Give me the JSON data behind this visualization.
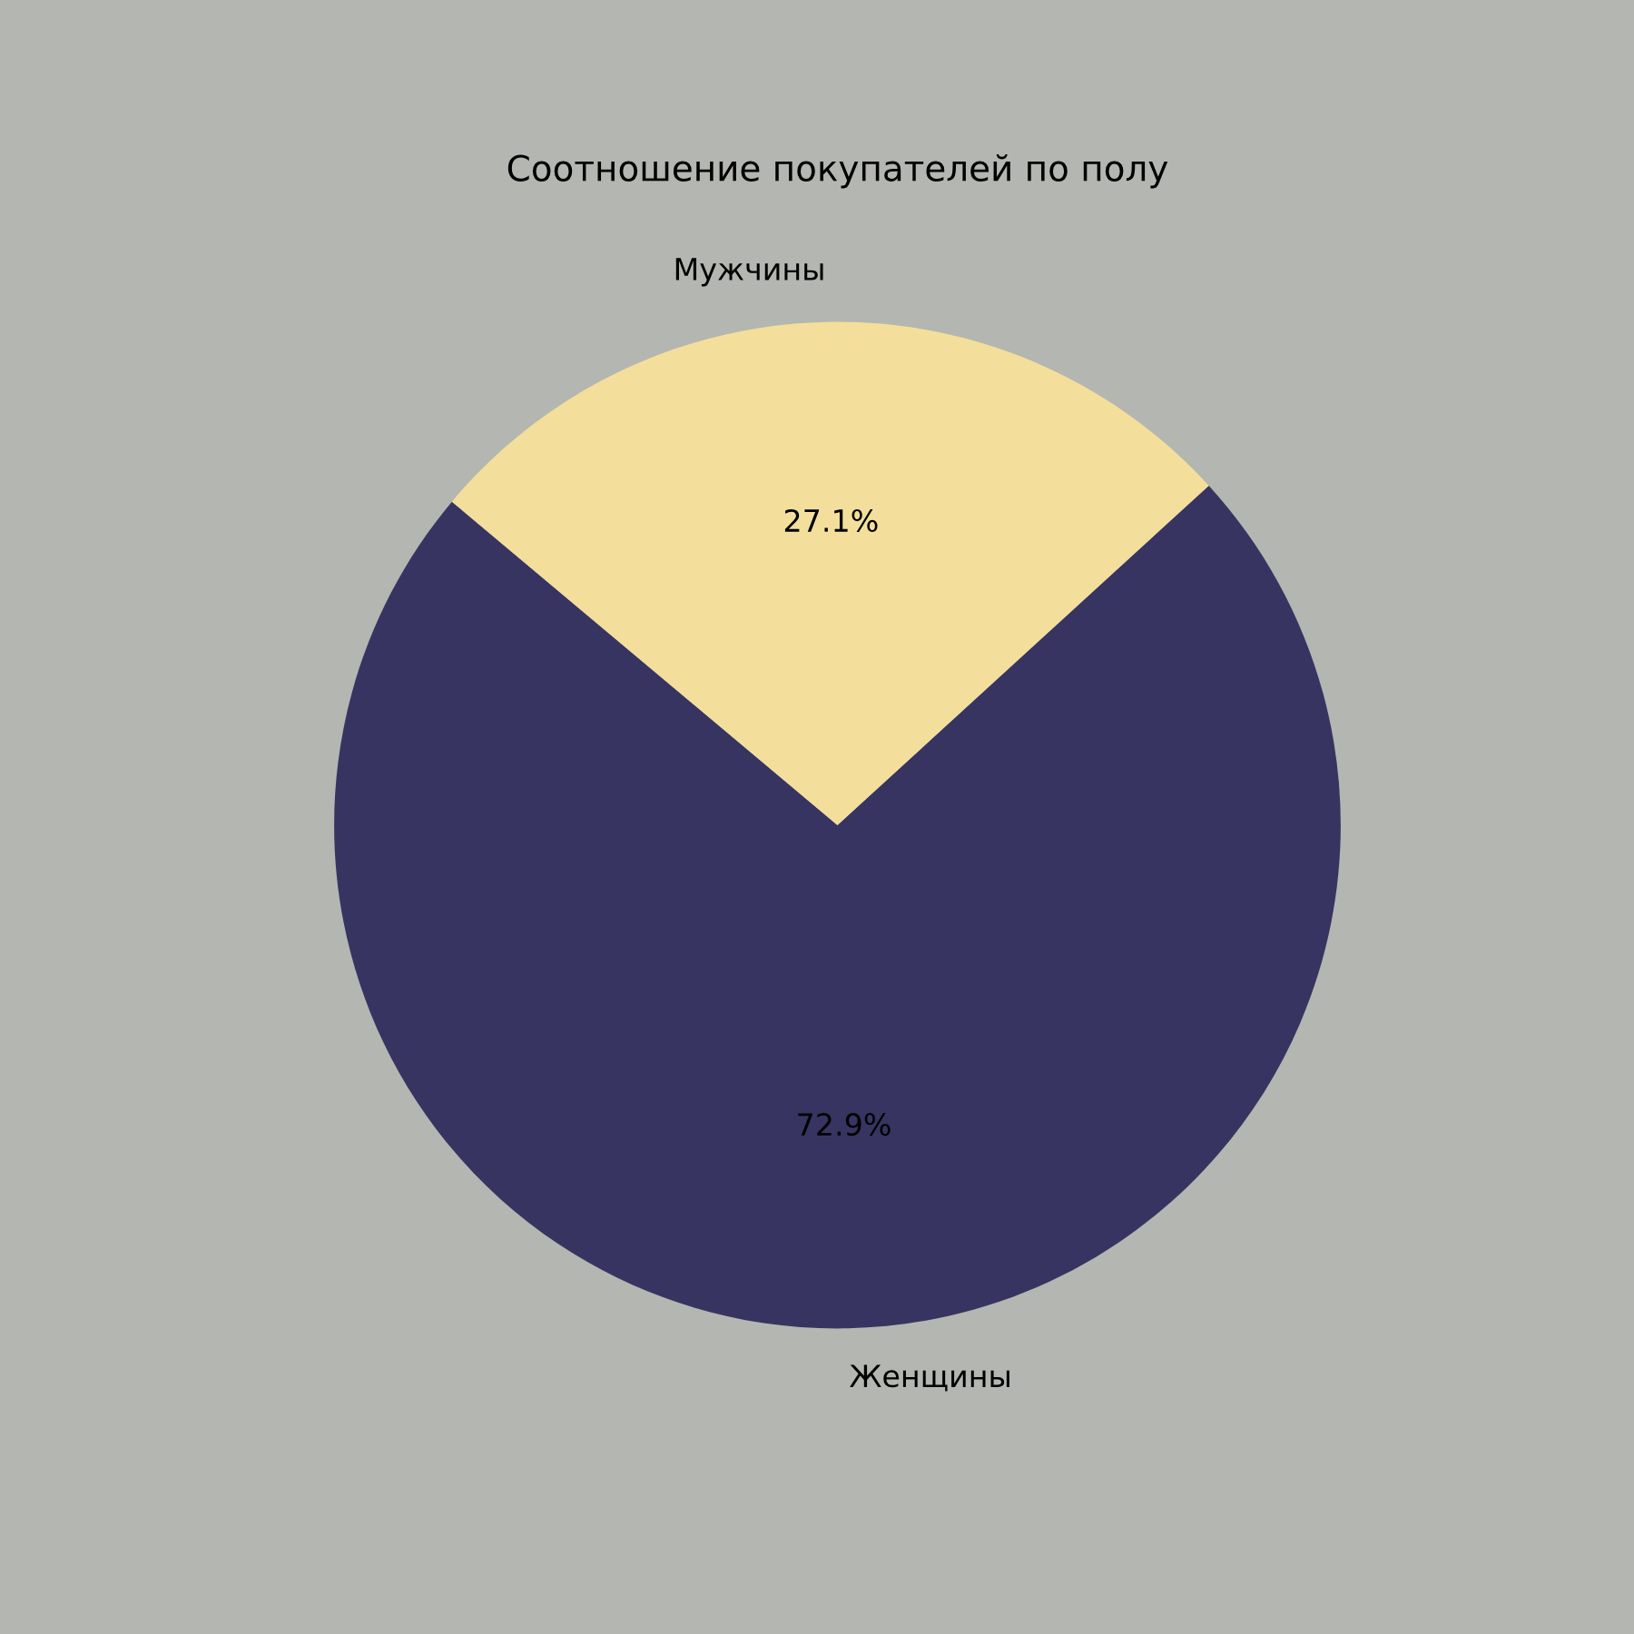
{
  "chart_data": {
    "type": "pie",
    "title": "Соотношение покупателей по полу",
    "categories": [
      "Женщины",
      "Мужчины"
    ],
    "values": [
      72.9,
      27.1
    ],
    "value_labels": [
      "72.9%",
      "27.1%"
    ],
    "colors": [
      "#383461",
      "#f3df9b"
    ]
  }
}
